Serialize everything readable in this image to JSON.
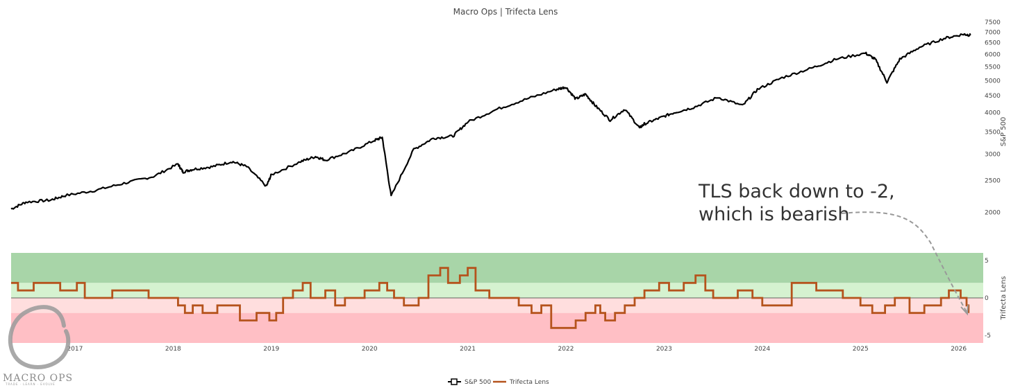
{
  "chart_data": {
    "title": "Macro Ops | Trifecta Lens",
    "type": "line",
    "x_ticks": [
      "2017",
      "2018",
      "2019",
      "2020",
      "2021",
      "2022",
      "2023",
      "2024",
      "2025",
      "2026"
    ],
    "x_range": [
      2016.35,
      2026.25
    ],
    "series": [
      {
        "name": "S&P 500",
        "axis": "top",
        "color": "#000000",
        "x": [
          2016.35,
          2016.5,
          2016.75,
          2016.9,
          2017.2,
          2017.5,
          2017.8,
          2018.05,
          2018.1,
          2018.2,
          2018.4,
          2018.6,
          2018.75,
          2018.95,
          2019.0,
          2019.3,
          2019.45,
          2019.55,
          2019.8,
          2020.05,
          2020.13,
          2020.22,
          2020.45,
          2020.65,
          2020.85,
          2021.0,
          2021.3,
          2021.6,
          2021.9,
          2022.0,
          2022.1,
          2022.2,
          2022.3,
          2022.45,
          2022.6,
          2022.75,
          2022.8,
          2022.95,
          2023.1,
          2023.3,
          2023.55,
          2023.8,
          2023.95,
          2024.2,
          2024.5,
          2024.75,
          2025.05,
          2025.15,
          2025.27,
          2025.4,
          2025.6,
          2025.85,
          2026.05,
          2026.12
        ],
        "y": [
          2050,
          2150,
          2180,
          2250,
          2330,
          2450,
          2570,
          2800,
          2650,
          2700,
          2750,
          2850,
          2750,
          2400,
          2600,
          2850,
          2950,
          2880,
          3050,
          3300,
          3370,
          2240,
          3100,
          3350,
          3400,
          3750,
          4100,
          4400,
          4700,
          4780,
          4400,
          4550,
          4200,
          3800,
          4100,
          3600,
          3700,
          3850,
          4000,
          4150,
          4450,
          4200,
          4700,
          5100,
          5450,
          5800,
          6050,
          5800,
          4950,
          5800,
          6300,
          6700,
          6900,
          6850
        ]
      },
      {
        "name": "Trifecta Lens",
        "axis": "bottom",
        "color": "#b5531c",
        "x": [
          2016.35,
          2016.42,
          2016.58,
          2016.85,
          2017.02,
          2017.1,
          2017.28,
          2017.38,
          2017.68,
          2017.75,
          2017.95,
          2018.05,
          2018.12,
          2018.2,
          2018.3,
          2018.45,
          2018.68,
          2018.85,
          2018.98,
          2019.05,
          2019.12,
          2019.22,
          2019.32,
          2019.4,
          2019.55,
          2019.65,
          2019.75,
          2019.95,
          2020.1,
          2020.18,
          2020.25,
          2020.35,
          2020.5,
          2020.6,
          2020.72,
          2020.8,
          2020.92,
          2021.0,
          2021.08,
          2021.22,
          2021.35,
          2021.52,
          2021.65,
          2021.75,
          2021.85,
          2022.1,
          2022.2,
          2022.3,
          2022.35,
          2022.4,
          2022.5,
          2022.6,
          2022.7,
          2022.8,
          2022.95,
          2023.05,
          2023.2,
          2023.32,
          2023.42,
          2023.5,
          2023.62,
          2023.75,
          2023.9,
          2024.0,
          2024.15,
          2024.3,
          2024.55,
          2024.72,
          2024.82,
          2025.0,
          2025.12,
          2025.25,
          2025.35,
          2025.5,
          2025.65,
          2025.82,
          2025.9,
          2026.02,
          2026.08,
          2026.1
        ],
        "y": [
          2,
          1,
          2,
          1,
          2,
          0,
          0,
          1,
          1,
          0,
          0,
          -1,
          -2,
          -1,
          -2,
          -1,
          -3,
          -2,
          -3,
          -2,
          0,
          1,
          2,
          0,
          1,
          -1,
          0,
          1,
          2,
          1,
          0,
          -1,
          0,
          3,
          4,
          2,
          3,
          4,
          1,
          0,
          0,
          -1,
          -2,
          -1,
          -4,
          -3,
          -2,
          -1,
          -2,
          -3,
          -2,
          -1,
          0,
          1,
          2,
          1,
          2,
          3,
          1,
          0,
          0,
          1,
          0,
          -1,
          -1,
          2,
          1,
          1,
          0,
          -1,
          -2,
          -1,
          0,
          -2,
          -1,
          0,
          1,
          0,
          -1,
          -2
        ]
      }
    ],
    "top_axis": {
      "title": "S&P 500",
      "scale": "log",
      "range": [
        1950,
        7500
      ],
      "ticks": [
        "2000",
        "2500",
        "3000",
        "3500",
        "4000",
        "4500",
        "5000",
        "5500",
        "6000",
        "6500",
        "7000",
        "7500"
      ]
    },
    "bottom_axis": {
      "title": "Trifecta Lens",
      "range": [
        -6,
        6
      ],
      "ticks": [
        "5",
        "0",
        "-5"
      ]
    },
    "bands": [
      {
        "from": 2,
        "to": 6,
        "color": "#a8d5a8"
      },
      {
        "from": 0,
        "to": 2,
        "color": "#d5f2d0"
      },
      {
        "from": -2,
        "to": 0,
        "color": "#ffdede"
      },
      {
        "from": -6,
        "to": -2,
        "color": "#ffbfc5"
      }
    ],
    "annotation": {
      "line1": "TLS back down to -2,",
      "line2": "which is bearish",
      "target_x": 2026.1,
      "target_y": -2
    },
    "legend": {
      "placement": "bottom-center",
      "items": [
        "S&P 500",
        "Trifecta Lens"
      ]
    },
    "logo": {
      "text": "MACRO OPS",
      "subtext": "TRADE · LEARN · EVOLVE"
    }
  }
}
